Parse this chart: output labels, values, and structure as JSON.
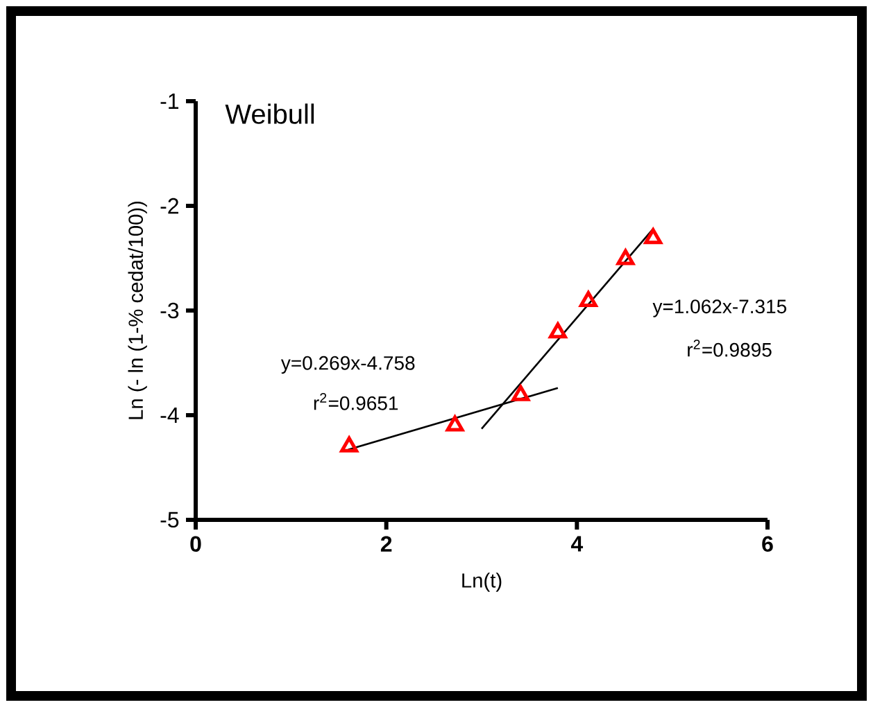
{
  "chart_data": {
    "type": "line",
    "title": "Weibull",
    "xlabel": "Ln(t)",
    "ylabel": "Ln (- ln (1-% cedat/100))",
    "xlim": [
      0,
      6
    ],
    "xticks": [
      0,
      2,
      4,
      6
    ],
    "ylim": [
      -5,
      -1
    ],
    "yticks": [
      -5,
      -4,
      -3,
      -2,
      -1
    ],
    "grid": false,
    "series": [
      {
        "type": "scatter",
        "marker": "triangle",
        "color": "#ff0000",
        "x": [
          1.61,
          2.72,
          3.41,
          3.8,
          4.12,
          4.51,
          4.8
        ],
        "values": [
          -4.3,
          -4.1,
          -3.81,
          -3.21,
          -2.91,
          -2.51,
          -2.31
        ]
      },
      {
        "color": "#000000",
        "x": [
          1.6,
          3.8
        ],
        "values": [
          -4.33,
          -3.74
        ]
      },
      {
        "color": "#000000",
        "x": [
          3.0,
          4.8
        ],
        "values": [
          -4.13,
          -2.22
        ]
      }
    ],
    "annotations": [
      "y=0.269x-4.758",
      "r$^{2}$=0.9651",
      "y=1.062x-7.315",
      "r$^{2}$=0.9895"
    ]
  }
}
